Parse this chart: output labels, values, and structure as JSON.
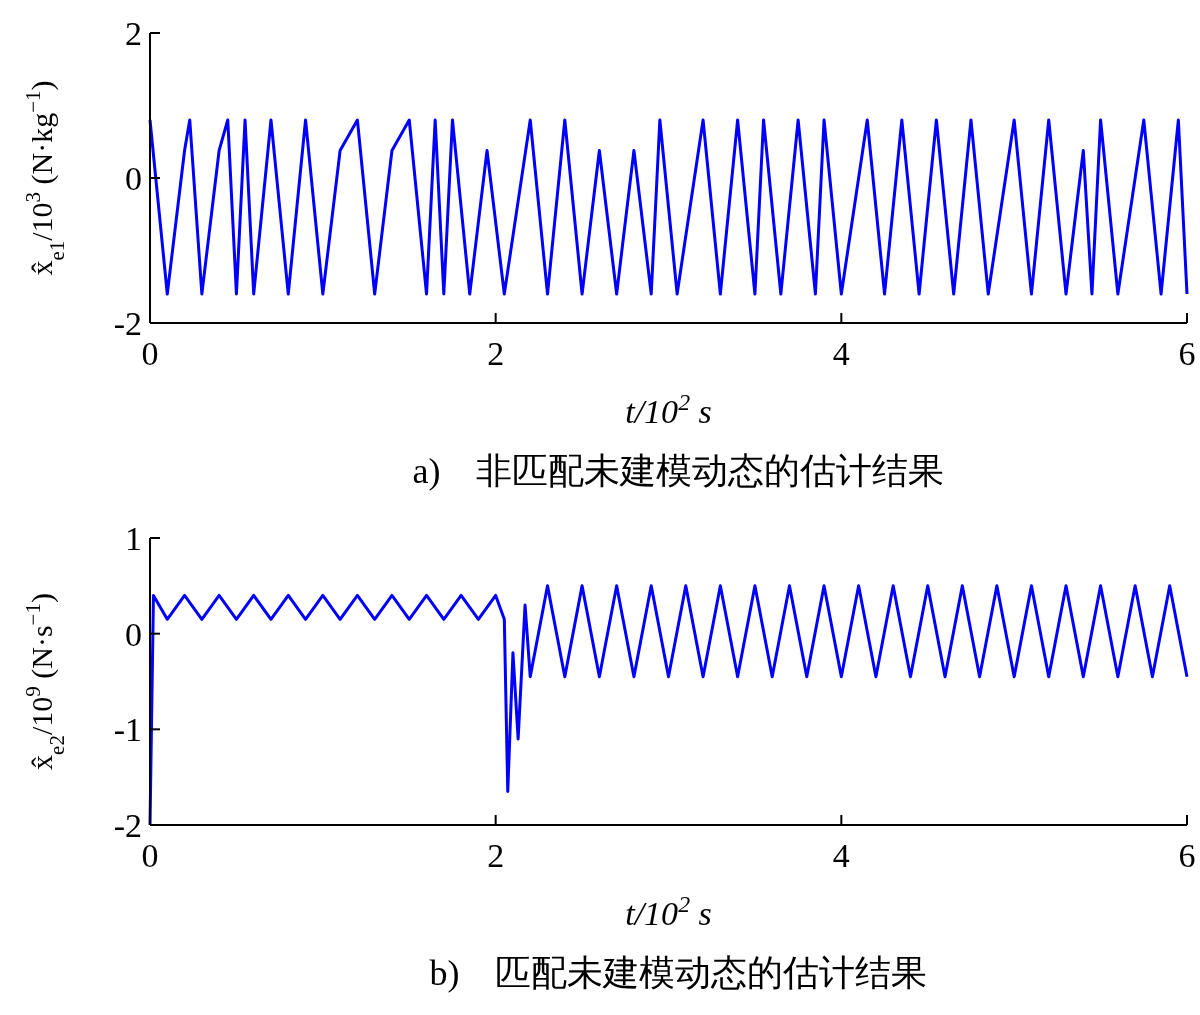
{
  "chart_data": [
    {
      "type": "line",
      "xlabel": "t/10$^{2}$ s",
      "ylabel": "x̂$_{e1}$/10$^{3}$ (N·kg$^{−1}$)",
      "annotations": [
        "a)　非匹配未建模动态的估计结果"
      ],
      "xlim": [
        0,
        6
      ],
      "ylim": [
        -2,
        2
      ],
      "xticks": [
        0,
        2,
        4,
        6
      ],
      "yticks": [
        -2,
        0,
        2
      ],
      "series": [
        {
          "color": "#0000ff",
          "x": [
            0,
            0.1,
            0.2,
            0.23,
            0.3,
            0.4,
            0.45,
            0.5,
            0.55,
            0.6,
            0.7,
            0.8,
            0.9,
            1,
            1.1,
            1.2,
            1.3,
            1.4,
            1.5,
            1.6,
            1.65,
            1.7,
            1.75,
            1.85,
            1.95,
            2.05,
            2.2,
            2.3,
            2.4,
            2.5,
            2.6,
            2.7,
            2.8,
            2.9,
            2.95,
            3.05,
            3.2,
            3.3,
            3.4,
            3.5,
            3.55,
            3.65,
            3.75,
            3.85,
            3.9,
            4,
            4.15,
            4.25,
            4.35,
            4.45,
            4.55,
            4.65,
            4.75,
            4.85,
            5,
            5.1,
            5.2,
            5.3,
            5.4,
            5.45,
            5.5,
            5.6,
            5.75,
            5.85,
            5.95,
            6
          ],
          "values": [
            0.8,
            -1.6,
            0.38,
            0.8,
            -1.6,
            0.38,
            0.8,
            -1.6,
            0.8,
            -1.6,
            0.8,
            -1.6,
            0.8,
            -1.6,
            0.38,
            0.8,
            -1.6,
            0.38,
            0.8,
            -1.6,
            0.8,
            -1.6,
            0.8,
            -1.6,
            0.38,
            -1.6,
            0.8,
            -1.6,
            0.8,
            -1.6,
            0.38,
            -1.6,
            0.38,
            -1.6,
            0.8,
            -1.6,
            0.8,
            -1.6,
            0.8,
            -1.6,
            0.8,
            -1.6,
            0.8,
            -1.6,
            0.8,
            -1.6,
            0.8,
            -1.6,
            0.8,
            -1.6,
            0.8,
            -1.6,
            0.8,
            -1.6,
            0.8,
            -1.6,
            0.8,
            -1.6,
            0.38,
            -1.6,
            0.8,
            -1.6,
            0.8,
            -1.6,
            0.8,
            -1.6
          ]
        }
      ]
    },
    {
      "type": "line",
      "xlabel": "t/10$^{2}$ s",
      "ylabel": "x̂$_{e2}$/10$^{9}$ (N·s$^{−1}$)",
      "annotations": [
        "b)　匹配未建模动态的估计结果"
      ],
      "xlim": [
        0,
        6
      ],
      "ylim": [
        -2,
        1
      ],
      "xticks": [
        0,
        2,
        4,
        6
      ],
      "yticks": [
        -2,
        -1,
        0,
        1
      ],
      "series": [
        {
          "color": "#0000ff",
          "x": [
            0,
            0.02,
            0.1,
            0.2,
            0.3,
            0.4,
            0.5,
            0.6,
            0.7,
            0.8,
            0.9,
            1,
            1.1,
            1.2,
            1.3,
            1.4,
            1.5,
            1.6,
            1.7,
            1.8,
            1.9,
            2,
            2.05,
            2.07,
            2.1,
            2.13,
            2.17,
            2.2,
            2.3,
            2.4,
            2.5,
            2.6,
            2.7,
            2.8,
            2.9,
            3,
            3.1,
            3.2,
            3.3,
            3.4,
            3.5,
            3.6,
            3.7,
            3.8,
            3.9,
            4,
            4.1,
            4.2,
            4.3,
            4.4,
            4.5,
            4.6,
            4.7,
            4.8,
            4.9,
            5,
            5.1,
            5.2,
            5.3,
            5.4,
            5.5,
            5.6,
            5.7,
            5.8,
            5.9,
            6
          ],
          "values": [
            -2,
            0.4,
            0.15,
            0.4,
            0.15,
            0.4,
            0.15,
            0.4,
            0.15,
            0.4,
            0.15,
            0.4,
            0.15,
            0.4,
            0.15,
            0.4,
            0.15,
            0.4,
            0.15,
            0.4,
            0.15,
            0.4,
            0.15,
            -1.65,
            -0.2,
            -1.1,
            0.3,
            -0.45,
            0.5,
            -0.45,
            0.5,
            -0.45,
            0.5,
            -0.45,
            0.5,
            -0.45,
            0.5,
            -0.45,
            0.5,
            -0.45,
            0.5,
            -0.45,
            0.5,
            -0.45,
            0.5,
            -0.45,
            0.5,
            -0.45,
            0.5,
            -0.45,
            0.5,
            -0.45,
            0.5,
            -0.45,
            0.5,
            -0.45,
            0.5,
            -0.45,
            0.5,
            -0.45,
            0.5,
            -0.45,
            0.5,
            -0.45,
            0.5,
            -0.45
          ]
        }
      ]
    }
  ]
}
